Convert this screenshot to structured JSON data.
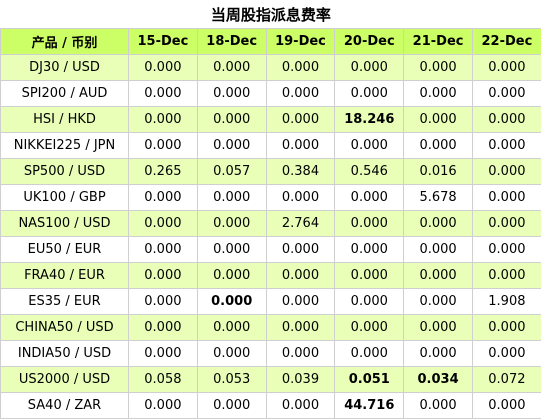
{
  "title": "当周股指派息费率",
  "header": {
    "product_label": "产品 / 币别",
    "dates": [
      "15-Dec",
      "18-Dec",
      "19-Dec",
      "20-Dec",
      "21-Dec",
      "22-Dec"
    ]
  },
  "rows": [
    {
      "pair": "DJ30 / USD",
      "values": [
        "0.000",
        "0.000",
        "0.000",
        "0.000",
        "0.000",
        "0.000"
      ],
      "bold": []
    },
    {
      "pair": "SPI200 / AUD",
      "values": [
        "0.000",
        "0.000",
        "0.000",
        "0.000",
        "0.000",
        "0.000"
      ],
      "bold": []
    },
    {
      "pair": "HSI / HKD",
      "values": [
        "0.000",
        "0.000",
        "0.000",
        "18.246",
        "0.000",
        "0.000"
      ],
      "bold": [
        3
      ]
    },
    {
      "pair": "NIKKEI225 / JPN",
      "values": [
        "0.000",
        "0.000",
        "0.000",
        "0.000",
        "0.000",
        "0.000"
      ],
      "bold": []
    },
    {
      "pair": "SP500 / USD",
      "values": [
        "0.265",
        "0.057",
        "0.384",
        "0.546",
        "0.016",
        "0.000"
      ],
      "bold": []
    },
    {
      "pair": "UK100 / GBP",
      "values": [
        "0.000",
        "0.000",
        "0.000",
        "0.000",
        "5.678",
        "0.000"
      ],
      "bold": []
    },
    {
      "pair": "NAS100 / USD",
      "values": [
        "0.000",
        "0.000",
        "2.764",
        "0.000",
        "0.000",
        "0.000"
      ],
      "bold": []
    },
    {
      "pair": "EU50 / EUR",
      "values": [
        "0.000",
        "0.000",
        "0.000",
        "0.000",
        "0.000",
        "0.000"
      ],
      "bold": []
    },
    {
      "pair": "FRA40 / EUR",
      "values": [
        "0.000",
        "0.000",
        "0.000",
        "0.000",
        "0.000",
        "0.000"
      ],
      "bold": []
    },
    {
      "pair": "ES35 / EUR",
      "values": [
        "0.000",
        "0.000",
        "0.000",
        "0.000",
        "0.000",
        "1.908"
      ],
      "bold": [
        1
      ]
    },
    {
      "pair": "CHINA50 / USD",
      "values": [
        "0.000",
        "0.000",
        "0.000",
        "0.000",
        "0.000",
        "0.000"
      ],
      "bold": []
    },
    {
      "pair": "INDIA50 / USD",
      "values": [
        "0.000",
        "0.000",
        "0.000",
        "0.000",
        "0.000",
        "0.000"
      ],
      "bold": []
    },
    {
      "pair": "US2000 / USD",
      "values": [
        "0.058",
        "0.053",
        "0.039",
        "0.051",
        "0.034",
        "0.072"
      ],
      "bold": [
        3,
        4
      ]
    },
    {
      "pair": "SA40 / ZAR",
      "values": [
        "0.000",
        "0.000",
        "0.000",
        "44.716",
        "0.000",
        "0.000"
      ],
      "bold": [
        3
      ]
    }
  ],
  "colors": {
    "header_bg": "#ccff66",
    "odd_row_bg": "#e9ffb8",
    "even_row_bg": "#ffffff",
    "border": "#cfcfcf"
  }
}
